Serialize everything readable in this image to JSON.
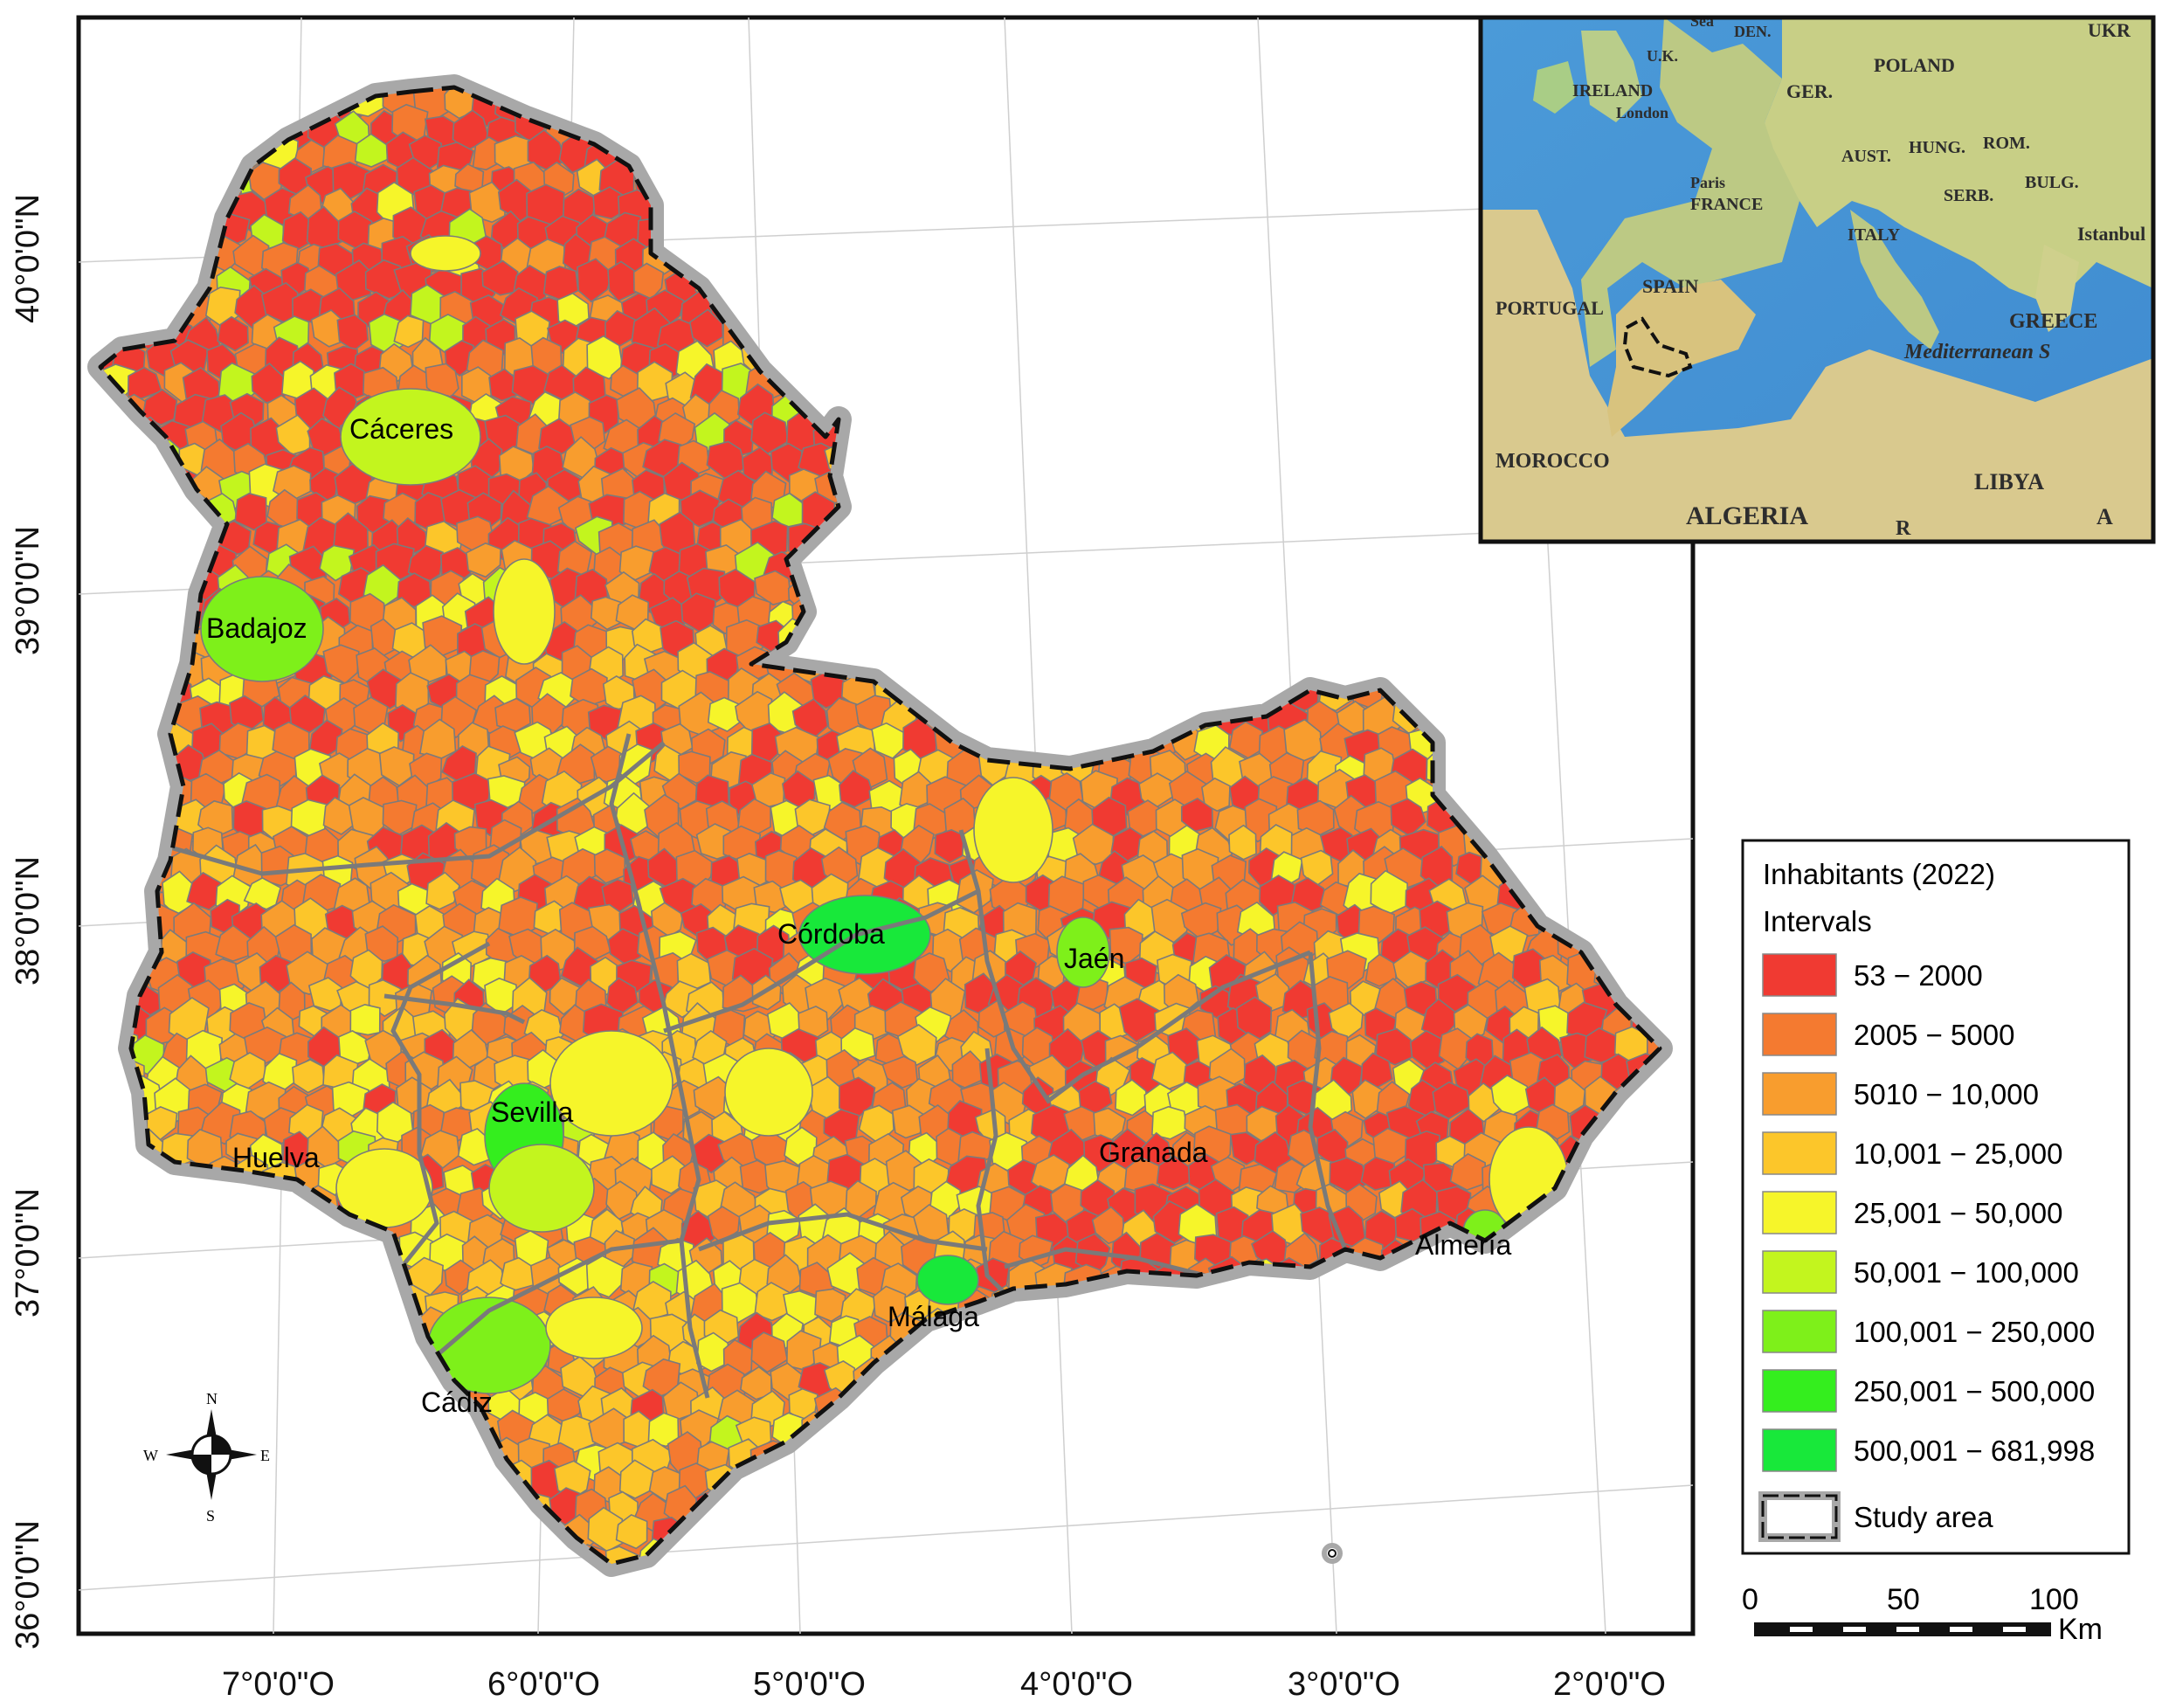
{
  "map": {
    "longitude_ticks": [
      "7°0'0\"O",
      "6°0'0\"O",
      "5°0'0\"O",
      "4°0'0\"O",
      "3°0'0\"O",
      "2°0'0\"O"
    ],
    "latitude_ticks": [
      "40°0'0\"N",
      "39°0'0\"N",
      "38°0'0\"N",
      "37°0'0\"N",
      "36°0'0\"N"
    ],
    "cities": [
      "Cáceres",
      "Badajoz",
      "Córdoba",
      "Jaén",
      "Sevilla",
      "Huelva",
      "Granada",
      "Almería",
      "Málaga",
      "Cádiz"
    ]
  },
  "inset": {
    "labels": [
      "Sea",
      "DEN.",
      "U.K.",
      "IRELAND",
      "London",
      "GER.",
      "POLAND",
      "UKR",
      "Paris",
      "FRANCE",
      "AUST.",
      "HUNG.",
      "ROM.",
      "SERB.",
      "BULG.",
      "Istanbul",
      "ITALY",
      "SPAIN",
      "PORTUGAL",
      "GREECE",
      "Mediterranean S",
      "MOROCCO",
      "ALGERIA",
      "LIBYA",
      "R",
      "A"
    ]
  },
  "legend": {
    "title": "Inhabitants (2022)",
    "subtitle": "Intervals",
    "items": [
      {
        "label": "53 − 2000",
        "color": "#f03a32"
      },
      {
        "label": "2005 − 5000",
        "color": "#f47a30"
      },
      {
        "label": "5010 − 10,000",
        "color": "#f89d2e"
      },
      {
        "label": "10,001 − 25,000",
        "color": "#fcc62a"
      },
      {
        "label": "25,001 − 50,000",
        "color": "#f6f52a"
      },
      {
        "label": "50,001 − 100,000",
        "color": "#c3f51e"
      },
      {
        "label": "100,001 − 250,000",
        "color": "#7ef01a"
      },
      {
        "label": "250,001 − 500,000",
        "color": "#34ee1e"
      },
      {
        "label": "500,001 − 681,998",
        "color": "#18e83a"
      }
    ],
    "study_area_label": "Study area"
  },
  "scale_bar": {
    "ticks": [
      "0",
      "50",
      "100"
    ],
    "unit": "Km"
  },
  "compass": {
    "n": "N",
    "s": "S",
    "e": "E",
    "w": "W"
  }
}
